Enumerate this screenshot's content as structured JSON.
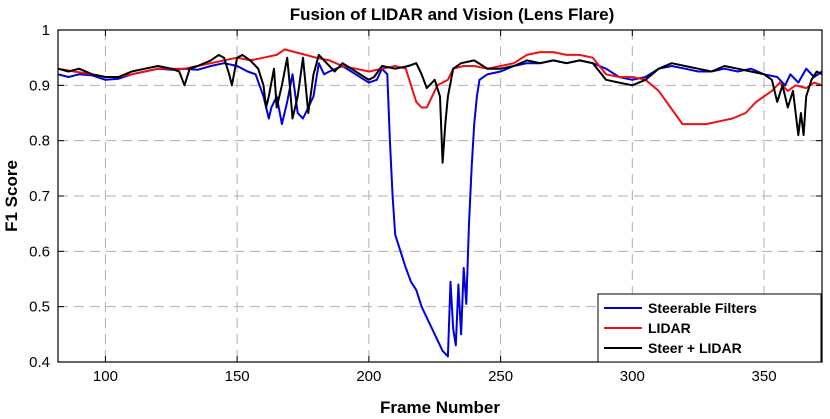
{
  "chart_data": {
    "type": "line",
    "title": "Fusion of LIDAR and Vision (Lens Flare)",
    "xlabel": "Frame Number",
    "ylabel": "F1 Score",
    "xlim": [
      82,
      372
    ],
    "ylim": [
      0.4,
      1.0
    ],
    "xticks": [
      100,
      150,
      200,
      250,
      300,
      350
    ],
    "yticks": [
      0.4,
      0.5,
      0.6,
      0.7,
      0.8,
      0.9,
      1.0
    ],
    "ytick_labels": [
      "0.4",
      "0.5",
      "0.6",
      "0.7",
      "0.8",
      "0.9",
      "1"
    ],
    "grid": true,
    "legend_position": "bottom-right",
    "series": [
      {
        "name": "Steerable Filters",
        "color": "#0000dd",
        "points": [
          [
            82,
            0.92
          ],
          [
            86,
            0.915
          ],
          [
            90,
            0.92
          ],
          [
            95,
            0.918
          ],
          [
            100,
            0.91
          ],
          [
            105,
            0.912
          ],
          [
            110,
            0.92
          ],
          [
            115,
            0.925
          ],
          [
            120,
            0.93
          ],
          [
            125,
            0.928
          ],
          [
            130,
            0.93
          ],
          [
            135,
            0.928
          ],
          [
            140,
            0.935
          ],
          [
            145,
            0.94
          ],
          [
            150,
            0.935
          ],
          [
            154,
            0.925
          ],
          [
            157,
            0.92
          ],
          [
            160,
            0.88
          ],
          [
            162,
            0.84
          ],
          [
            163,
            0.86
          ],
          [
            165,
            0.88
          ],
          [
            167,
            0.83
          ],
          [
            169,
            0.87
          ],
          [
            171,
            0.92
          ],
          [
            173,
            0.85
          ],
          [
            175,
            0.84
          ],
          [
            177,
            0.86
          ],
          [
            179,
            0.88
          ],
          [
            181,
            0.94
          ],
          [
            183,
            0.92
          ],
          [
            185,
            0.925
          ],
          [
            190,
            0.935
          ],
          [
            195,
            0.92
          ],
          [
            200,
            0.905
          ],
          [
            203,
            0.91
          ],
          [
            205,
            0.93
          ],
          [
            207,
            0.92
          ],
          [
            208,
            0.8
          ],
          [
            209,
            0.7
          ],
          [
            210,
            0.63
          ],
          [
            212,
            0.6
          ],
          [
            214,
            0.57
          ],
          [
            216,
            0.545
          ],
          [
            218,
            0.53
          ],
          [
            220,
            0.5
          ],
          [
            222,
            0.48
          ],
          [
            224,
            0.46
          ],
          [
            226,
            0.44
          ],
          [
            228,
            0.42
          ],
          [
            229,
            0.415
          ],
          [
            230,
            0.41
          ],
          [
            231,
            0.545
          ],
          [
            232,
            0.46
          ],
          [
            233,
            0.43
          ],
          [
            234,
            0.54
          ],
          [
            235,
            0.45
          ],
          [
            236,
            0.57
          ],
          [
            237,
            0.505
          ],
          [
            238,
            0.65
          ],
          [
            239,
            0.75
          ],
          [
            240,
            0.83
          ],
          [
            241,
            0.88
          ],
          [
            242,
            0.91
          ],
          [
            245,
            0.92
          ],
          [
            250,
            0.925
          ],
          [
            255,
            0.935
          ],
          [
            260,
            0.94
          ],
          [
            265,
            0.94
          ],
          [
            270,
            0.945
          ],
          [
            275,
            0.94
          ],
          [
            280,
            0.945
          ],
          [
            285,
            0.94
          ],
          [
            290,
            0.93
          ],
          [
            295,
            0.915
          ],
          [
            300,
            0.91
          ],
          [
            305,
            0.915
          ],
          [
            310,
            0.93
          ],
          [
            315,
            0.935
          ],
          [
            320,
            0.93
          ],
          [
            325,
            0.925
          ],
          [
            330,
            0.925
          ],
          [
            335,
            0.93
          ],
          [
            340,
            0.925
          ],
          [
            345,
            0.93
          ],
          [
            350,
            0.92
          ],
          [
            355,
            0.915
          ],
          [
            358,
            0.9
          ],
          [
            360,
            0.92
          ],
          [
            363,
            0.905
          ],
          [
            366,
            0.93
          ],
          [
            369,
            0.915
          ],
          [
            372,
            0.925
          ]
        ]
      },
      {
        "name": "LIDAR",
        "color": "#ee1111",
        "points": [
          [
            82,
            0.93
          ],
          [
            88,
            0.925
          ],
          [
            95,
            0.92
          ],
          [
            100,
            0.915
          ],
          [
            105,
            0.915
          ],
          [
            110,
            0.92
          ],
          [
            115,
            0.925
          ],
          [
            120,
            0.93
          ],
          [
            125,
            0.93
          ],
          [
            130,
            0.93
          ],
          [
            135,
            0.935
          ],
          [
            140,
            0.94
          ],
          [
            145,
            0.945
          ],
          [
            150,
            0.95
          ],
          [
            155,
            0.945
          ],
          [
            160,
            0.95
          ],
          [
            165,
            0.955
          ],
          [
            168,
            0.965
          ],
          [
            172,
            0.96
          ],
          [
            176,
            0.955
          ],
          [
            180,
            0.95
          ],
          [
            185,
            0.945
          ],
          [
            190,
            0.935
          ],
          [
            195,
            0.93
          ],
          [
            200,
            0.925
          ],
          [
            205,
            0.93
          ],
          [
            210,
            0.935
          ],
          [
            214,
            0.93
          ],
          [
            216,
            0.9
          ],
          [
            218,
            0.87
          ],
          [
            220,
            0.86
          ],
          [
            222,
            0.86
          ],
          [
            224,
            0.88
          ],
          [
            226,
            0.9
          ],
          [
            228,
            0.905
          ],
          [
            230,
            0.91
          ],
          [
            232,
            0.93
          ],
          [
            236,
            0.935
          ],
          [
            240,
            0.935
          ],
          [
            245,
            0.93
          ],
          [
            250,
            0.935
          ],
          [
            255,
            0.94
          ],
          [
            260,
            0.955
          ],
          [
            265,
            0.96
          ],
          [
            270,
            0.96
          ],
          [
            275,
            0.955
          ],
          [
            280,
            0.955
          ],
          [
            285,
            0.95
          ],
          [
            290,
            0.92
          ],
          [
            295,
            0.915
          ],
          [
            300,
            0.915
          ],
          [
            305,
            0.91
          ],
          [
            310,
            0.89
          ],
          [
            313,
            0.87
          ],
          [
            316,
            0.85
          ],
          [
            319,
            0.83
          ],
          [
            323,
            0.83
          ],
          [
            328,
            0.83
          ],
          [
            333,
            0.835
          ],
          [
            338,
            0.84
          ],
          [
            343,
            0.85
          ],
          [
            347,
            0.87
          ],
          [
            350,
            0.88
          ],
          [
            353,
            0.89
          ],
          [
            356,
            0.905
          ],
          [
            359,
            0.89
          ],
          [
            362,
            0.9
          ],
          [
            366,
            0.895
          ],
          [
            369,
            0.905
          ],
          [
            372,
            0.9
          ]
        ]
      },
      {
        "name": "Steer + LIDAR",
        "color": "#000000",
        "points": [
          [
            82,
            0.93
          ],
          [
            86,
            0.925
          ],
          [
            90,
            0.93
          ],
          [
            95,
            0.92
          ],
          [
            100,
            0.915
          ],
          [
            105,
            0.915
          ],
          [
            110,
            0.925
          ],
          [
            115,
            0.93
          ],
          [
            120,
            0.935
          ],
          [
            125,
            0.93
          ],
          [
            128,
            0.925
          ],
          [
            130,
            0.9
          ],
          [
            132,
            0.93
          ],
          [
            135,
            0.935
          ],
          [
            140,
            0.945
          ],
          [
            143,
            0.955
          ],
          [
            145,
            0.95
          ],
          [
            147,
            0.92
          ],
          [
            148,
            0.9
          ],
          [
            150,
            0.95
          ],
          [
            152,
            0.955
          ],
          [
            155,
            0.945
          ],
          [
            158,
            0.93
          ],
          [
            160,
            0.9
          ],
          [
            161,
            0.86
          ],
          [
            162,
            0.88
          ],
          [
            164,
            0.93
          ],
          [
            165,
            0.86
          ],
          [
            167,
            0.9
          ],
          [
            169,
            0.95
          ],
          [
            170,
            0.9
          ],
          [
            171,
            0.84
          ],
          [
            173,
            0.88
          ],
          [
            175,
            0.95
          ],
          [
            177,
            0.85
          ],
          [
            179,
            0.92
          ],
          [
            181,
            0.955
          ],
          [
            184,
            0.94
          ],
          [
            187,
            0.925
          ],
          [
            190,
            0.94
          ],
          [
            195,
            0.925
          ],
          [
            200,
            0.91
          ],
          [
            202,
            0.915
          ],
          [
            205,
            0.935
          ],
          [
            210,
            0.93
          ],
          [
            215,
            0.935
          ],
          [
            218,
            0.94
          ],
          [
            220,
            0.92
          ],
          [
            222,
            0.895
          ],
          [
            225,
            0.91
          ],
          [
            227,
            0.88
          ],
          [
            228,
            0.76
          ],
          [
            229,
            0.83
          ],
          [
            230,
            0.88
          ],
          [
            232,
            0.93
          ],
          [
            235,
            0.94
          ],
          [
            240,
            0.945
          ],
          [
            245,
            0.93
          ],
          [
            250,
            0.93
          ],
          [
            255,
            0.935
          ],
          [
            260,
            0.945
          ],
          [
            265,
            0.94
          ],
          [
            270,
            0.945
          ],
          [
            275,
            0.94
          ],
          [
            280,
            0.945
          ],
          [
            285,
            0.94
          ],
          [
            290,
            0.91
          ],
          [
            295,
            0.905
          ],
          [
            300,
            0.9
          ],
          [
            305,
            0.91
          ],
          [
            310,
            0.93
          ],
          [
            315,
            0.94
          ],
          [
            320,
            0.935
          ],
          [
            325,
            0.93
          ],
          [
            330,
            0.925
          ],
          [
            335,
            0.935
          ],
          [
            340,
            0.93
          ],
          [
            345,
            0.925
          ],
          [
            350,
            0.92
          ],
          [
            353,
            0.91
          ],
          [
            355,
            0.87
          ],
          [
            357,
            0.9
          ],
          [
            359,
            0.86
          ],
          [
            361,
            0.89
          ],
          [
            363,
            0.81
          ],
          [
            364,
            0.85
          ],
          [
            365,
            0.81
          ],
          [
            366,
            0.88
          ],
          [
            368,
            0.91
          ],
          [
            370,
            0.925
          ],
          [
            372,
            0.92
          ]
        ]
      }
    ]
  }
}
